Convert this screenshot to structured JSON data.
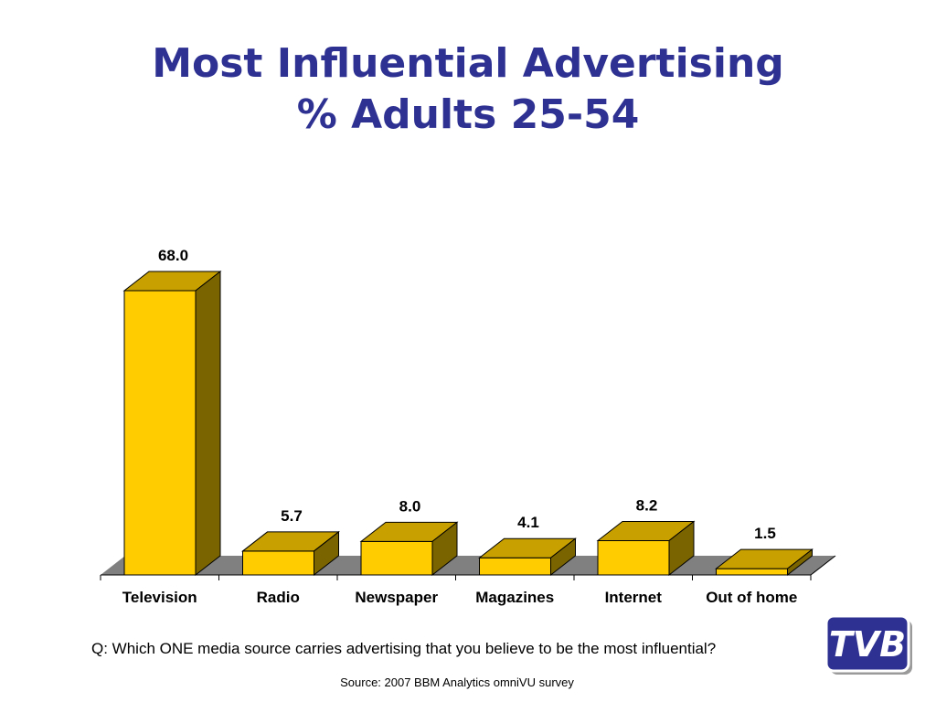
{
  "header": {
    "title_line1": "Most Influential Advertising",
    "title_line2": "% Adults 25-54"
  },
  "footer": {
    "question": "Q: Which ONE media source carries advertising that you believe to be the most influential?",
    "source": "Source: 2007 BBM Analytics omniVU survey",
    "logo_text": "TVB"
  },
  "colors": {
    "title": "#2e3192",
    "bar_front": "#ffcc00",
    "bar_top": "#c8a000",
    "bar_side": "#7a6400",
    "floor": "#808080"
  },
  "chart_data": {
    "type": "bar",
    "title": "Most Influential Advertising % Adults 25-54",
    "categories": [
      "Television",
      "Radio",
      "Newspaper",
      "Magazines",
      "Internet",
      "Out of home"
    ],
    "values": [
      68.0,
      5.7,
      8.0,
      4.1,
      8.2,
      1.5
    ],
    "value_labels": [
      "68.0",
      "5.7",
      "8.0",
      "4.1",
      "8.2",
      "1.5"
    ],
    "xlabel": "",
    "ylabel": "",
    "ylim": [
      0,
      68
    ],
    "grid": false,
    "legend": "none",
    "style": "3d"
  }
}
